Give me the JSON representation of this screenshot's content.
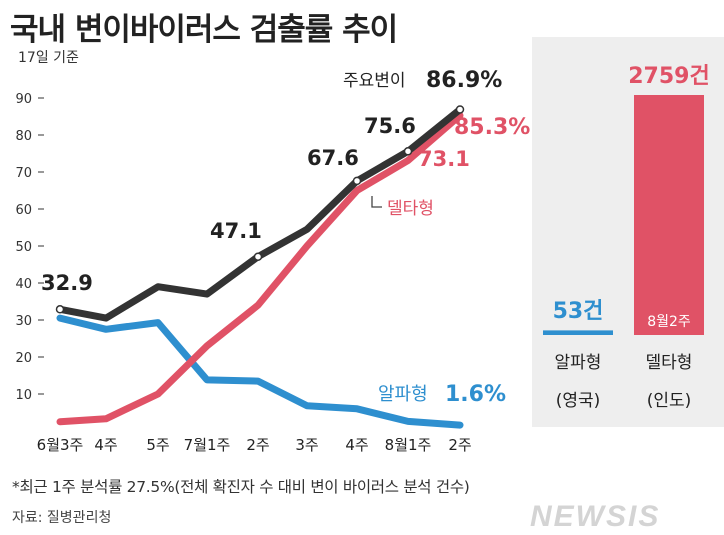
{
  "title": "국내 변이바이러스 검출률 추이",
  "basis_note": "17일 기준",
  "footnote": "*최근 1주 분석률 27.5%(전체 확진자 수 대비 변이 바이러스 분석 건수)",
  "source": "자료: 질병관리청",
  "watermark": "NEWSIS",
  "colors": {
    "major": "#333333",
    "delta": "#e05266",
    "alpha": "#2e8fcf"
  },
  "chart_data": [
    {
      "type": "line",
      "title": "국내 변이바이러스 검출률 추이",
      "categories": [
        "6월3주",
        "4주",
        "5주",
        "7월1주",
        "2주",
        "3주",
        "4주",
        "8월1주",
        "2주"
      ],
      "ylim": [
        0,
        90
      ],
      "yticks": [
        10,
        20,
        30,
        40,
        50,
        60,
        70,
        80,
        90
      ],
      "series": [
        {
          "name": "주요변이",
          "values": [
            32.9,
            30.5,
            39.0,
            37.0,
            47.1,
            54.5,
            67.6,
            75.6,
            86.9
          ]
        },
        {
          "name": "델타형",
          "values": [
            2.5,
            3.3,
            10.0,
            23.0,
            34.0,
            50.0,
            65.0,
            73.1,
            85.3
          ]
        },
        {
          "name": "알파형",
          "values": [
            30.5,
            27.5,
            29.3,
            13.8,
            13.5,
            6.8,
            6.0,
            2.6,
            1.6
          ]
        }
      ],
      "annotations": {
        "major_label": "주요변이",
        "major_end": "86.9%",
        "delta_label": "델타형",
        "delta_end": "85.3%",
        "alpha_label": "알파형",
        "alpha_end": "1.6%",
        "v1": "32.9",
        "v5": "47.1",
        "v7": "67.6",
        "v8": "75.6",
        "v8_delta": "73.1"
      }
    },
    {
      "type": "bar",
      "period": "8월2주",
      "categories": [
        "알파형",
        "델타형"
      ],
      "sublabels": [
        "(영국)",
        "(인도)"
      ],
      "values": [
        53,
        2759
      ],
      "value_labels": [
        "53건",
        "2759건"
      ]
    }
  ]
}
